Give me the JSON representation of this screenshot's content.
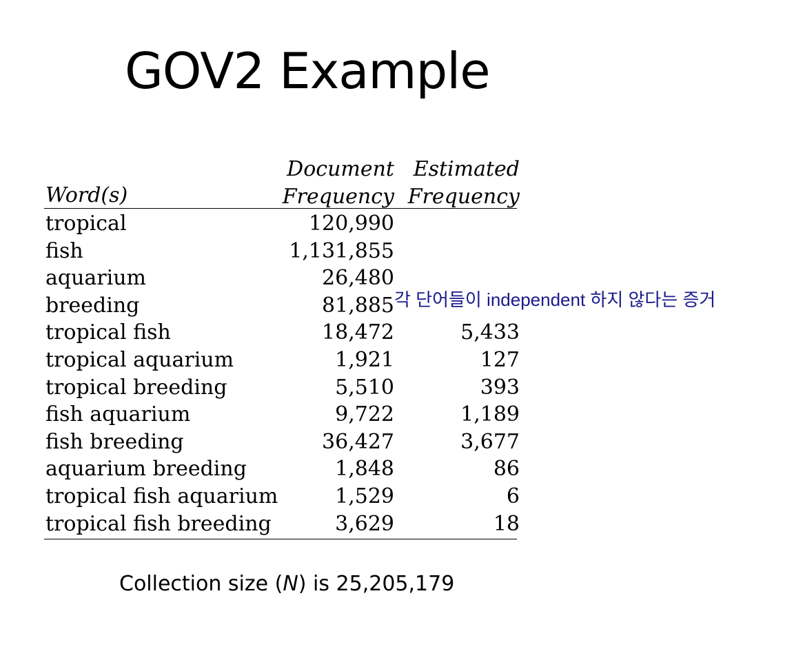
{
  "slide": {
    "title": "GOV2 Example"
  },
  "table": {
    "headers": {
      "word": "Word(s)",
      "doc_line1": "Document",
      "doc_line2": "Frequency",
      "est_line1": "Estimated",
      "est_line2": "Frequency"
    },
    "rows": [
      {
        "word": "tropical",
        "doc": "120,990",
        "est": ""
      },
      {
        "word": "fish",
        "doc": "1,131,855",
        "est": ""
      },
      {
        "word": "aquarium",
        "doc": "26,480",
        "est": ""
      },
      {
        "word": "breeding",
        "doc": "81,885",
        "est": ""
      },
      {
        "word": "tropical fish",
        "doc": "18,472",
        "est": "5,433"
      },
      {
        "word": "tropical aquarium",
        "doc": "1,921",
        "est": "127"
      },
      {
        "word": "tropical breeding",
        "doc": "5,510",
        "est": "393"
      },
      {
        "word": "fish aquarium",
        "doc": "9,722",
        "est": "1,189"
      },
      {
        "word": "fish breeding",
        "doc": "36,427",
        "est": "3,677"
      },
      {
        "word": "aquarium breeding",
        "doc": "1,848",
        "est": "86"
      },
      {
        "word": "tropical fish aquarium",
        "doc": "1,529",
        "est": "6"
      },
      {
        "word": "tropical fish breeding",
        "doc": "3,629",
        "est": "18"
      }
    ]
  },
  "annotation": {
    "text": "각 단어들이 independent 하지 않다는 증거",
    "color": "#1a1a8c"
  },
  "footer": {
    "prefix": "Collection size (",
    "variable": "N",
    "suffix": ") is 25,205,179"
  }
}
